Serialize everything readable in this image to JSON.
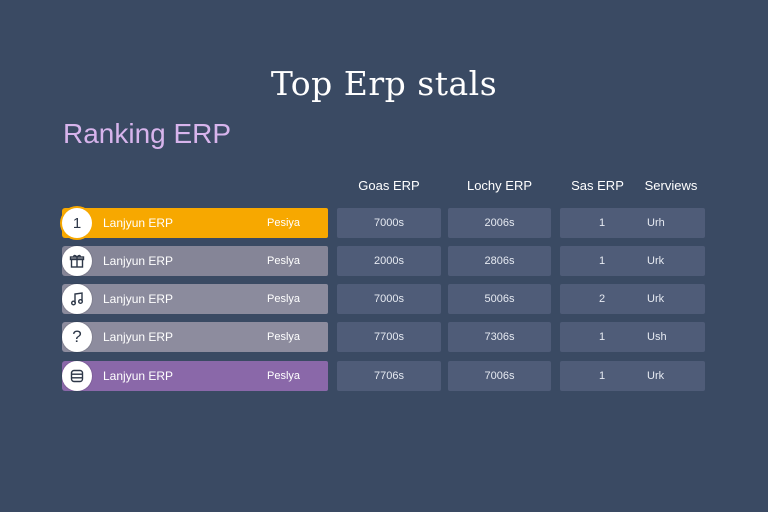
{
  "header": {
    "title": "Top Erp stals",
    "section_title": "Ranking ERP"
  },
  "columns": {
    "col1": "Goas ERP",
    "col2": "Lochy ERP",
    "col3": "Sas ERP",
    "col4": "Serviews"
  },
  "rows": [
    {
      "badge": "1",
      "icon": "number-one-icon",
      "name": "Lanjyun ERP",
      "sub": "Pesiya",
      "v1": "7000s",
      "v2": "2006s",
      "rank": "1",
      "service": "Urh",
      "bar_color": "#f7a800"
    },
    {
      "badge": "",
      "icon": "gift-box-icon",
      "name": "Lanjyun ERP",
      "sub": "Peslya",
      "v1": "2000s",
      "v2": "2806s",
      "rank": "1",
      "service": "Urk",
      "bar_color": "#858597"
    },
    {
      "badge": "",
      "icon": "music-note-icon",
      "name": "Lanjyun ERP",
      "sub": "Peslya",
      "v1": "7000s",
      "v2": "5006s",
      "rank": "2",
      "service": "Urk",
      "bar_color": "#8b8b9d"
    },
    {
      "badge": "?",
      "icon": "question-mark-icon",
      "name": "Lanjyun ERP",
      "sub": "Peslya",
      "v1": "7700s",
      "v2": "7306s",
      "rank": "1",
      "service": "Ush",
      "bar_color": "#8d8c9e"
    },
    {
      "badge": "",
      "icon": "database-icon",
      "name": "Lanjyun ERP",
      "sub": "Peslya",
      "v1": "7706s",
      "v2": "7006s",
      "rank": "1",
      "service": "Urk",
      "bar_color": "#8a68a9"
    }
  ]
}
